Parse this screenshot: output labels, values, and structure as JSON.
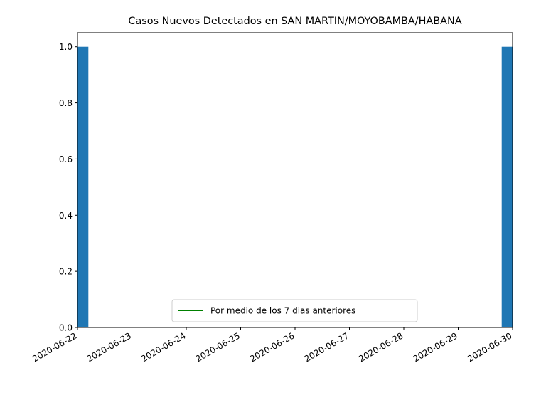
{
  "chart_data": {
    "type": "bar",
    "title": "Casos Nuevos Detectados en SAN MARTIN/MOYOBAMBA/HABANA",
    "xlabel": "",
    "ylabel": "",
    "x_ticks": [
      "2020-06-22",
      "2020-06-23",
      "2020-06-24",
      "2020-06-25",
      "2020-06-26",
      "2020-06-27",
      "2020-06-28",
      "2020-06-29",
      "2020-06-30"
    ],
    "y_ticks": [
      "0.0",
      "0.2",
      "0.4",
      "0.6",
      "0.8",
      "1.0"
    ],
    "xlim": [
      "2020-06-22",
      "2020-06-30"
    ],
    "ylim": [
      0,
      1.05
    ],
    "grid": false,
    "series": [
      {
        "type": "bar",
        "color": "#1f77b4",
        "points": [
          {
            "x": "2020-06-22",
            "y": 1
          },
          {
            "x": "2020-06-30",
            "y": 1
          }
        ]
      },
      {
        "name": "Por medio de los 7 dias anteriores",
        "type": "line",
        "color": "#008000",
        "points": []
      }
    ],
    "legend": {
      "position": "lower center",
      "entries": [
        "Por medio de los 7 dias anteriores"
      ]
    }
  }
}
